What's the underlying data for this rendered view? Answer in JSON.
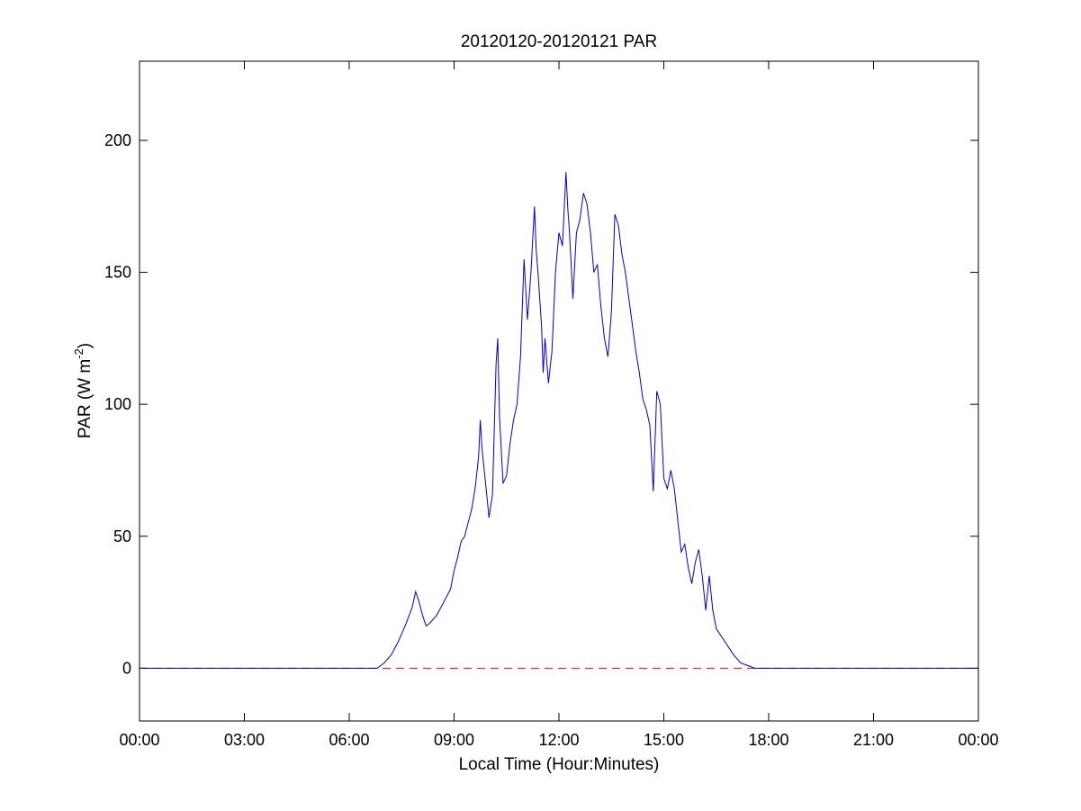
{
  "chart_data": {
    "type": "line",
    "title": "20120120-20120121 PAR",
    "xlabel": "Local Time (Hour:Minutes)",
    "ylabel_main": "PAR (W m",
    "ylabel_sup": "-2",
    "ylabel_close": ")",
    "xlim": [
      0,
      24
    ],
    "ylim": [
      -20,
      230
    ],
    "x_ticks": [
      0,
      3,
      6,
      9,
      12,
      15,
      18,
      21,
      24
    ],
    "x_tick_labels": [
      "00:00",
      "03:00",
      "06:00",
      "09:00",
      "12:00",
      "15:00",
      "18:00",
      "21:00",
      "00:00"
    ],
    "y_ticks": [
      0,
      50,
      100,
      150,
      200
    ],
    "y_tick_labels": [
      "0",
      "50",
      "100",
      "150",
      "200"
    ],
    "grid": false,
    "colors": {
      "series": "#0000cc",
      "reference": "#ff0000",
      "axes": "#000000"
    },
    "reference_line": {
      "y": 0,
      "style": "dashed"
    },
    "series": [
      {
        "x": [
          0,
          6.0,
          6.5,
          6.8,
          7.0,
          7.2,
          7.4,
          7.6,
          7.8,
          7.9,
          8.0,
          8.1,
          8.2,
          8.3,
          8.5,
          8.7,
          8.9,
          9.0,
          9.1,
          9.2,
          9.3,
          9.4,
          9.5,
          9.6,
          9.7,
          9.75,
          9.8,
          9.9,
          10.0,
          10.1,
          10.2,
          10.25,
          10.3,
          10.4,
          10.5,
          10.6,
          10.7,
          10.8,
          10.9,
          11.0,
          11.1,
          11.2,
          11.3,
          11.35,
          11.4,
          11.5,
          11.55,
          11.6,
          11.7,
          11.8,
          11.85,
          11.9,
          12.0,
          12.1,
          12.2,
          12.25,
          12.3,
          12.4,
          12.5,
          12.6,
          12.7,
          12.8,
          12.9,
          13.0,
          13.1,
          13.2,
          13.3,
          13.4,
          13.5,
          13.6,
          13.7,
          13.8,
          13.9,
          14.0,
          14.1,
          14.2,
          14.3,
          14.4,
          14.5,
          14.6,
          14.7,
          14.8,
          14.9,
          15.0,
          15.1,
          15.2,
          15.3,
          15.4,
          15.5,
          15.6,
          15.7,
          15.8,
          15.9,
          16.0,
          16.1,
          16.2,
          16.3,
          16.4,
          16.5,
          16.6,
          16.8,
          17.0,
          17.2,
          17.4,
          17.6,
          18.0,
          24
        ],
        "y": [
          0,
          0,
          0,
          0,
          2,
          5,
          10,
          16,
          23,
          29,
          25,
          20,
          16,
          17,
          20,
          25,
          30,
          37,
          42,
          48,
          50,
          55,
          60,
          68,
          80,
          94,
          83,
          70,
          57,
          66,
          115,
          125,
          95,
          70,
          73,
          85,
          94,
          100,
          118,
          155,
          132,
          150,
          175,
          158,
          150,
          130,
          112,
          125,
          108,
          120,
          135,
          150,
          165,
          160,
          188,
          175,
          165,
          140,
          165,
          170,
          180,
          176,
          165,
          150,
          153,
          137,
          125,
          118,
          135,
          172,
          168,
          157,
          150,
          140,
          130,
          120,
          112,
          102,
          98,
          92,
          67,
          105,
          100,
          72,
          68,
          75,
          68,
          56,
          44,
          47,
          38,
          32,
          40,
          45,
          35,
          22,
          35,
          22,
          15,
          13,
          9,
          5,
          2,
          1,
          0,
          0,
          0
        ]
      }
    ]
  }
}
